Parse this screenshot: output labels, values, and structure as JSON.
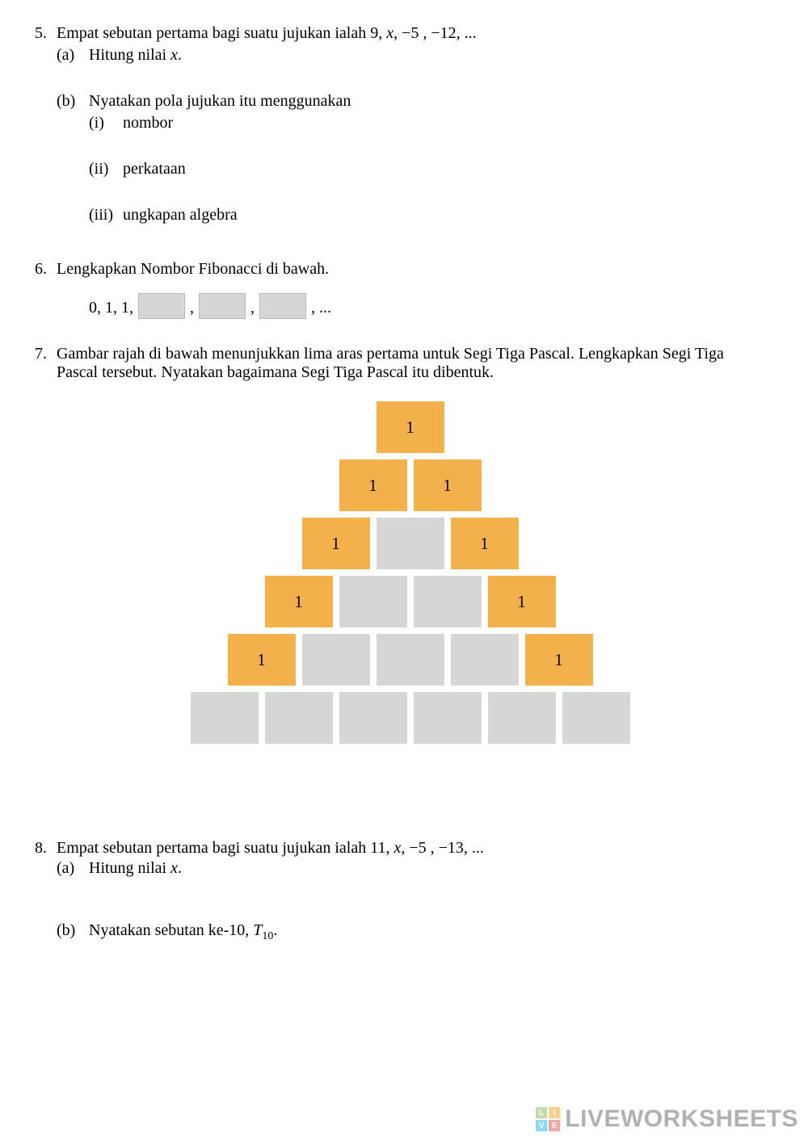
{
  "q5": {
    "num": "5.",
    "text_a": "Empat sebutan pertama bagi suatu jujukan ialah  9, ",
    "text_x": "x",
    "text_b": ", −5 , −12, ...",
    "a_lbl": "(a)",
    "a_txt": "Hitung nilai ",
    "a_x": "x",
    "a_dot": ".",
    "b_lbl": "(b)",
    "b_txt": "Nyatakan pola jujukan itu menggunakan",
    "i_lbl": "(i)",
    "i_txt": "nombor",
    "ii_lbl": "(ii)",
    "ii_txt": "perkataan",
    "iii_lbl": "(iii)",
    "iii_txt": "ungkapan algebra"
  },
  "q6": {
    "num": "6.",
    "text": "Lengkapkan Nombor Fibonacci di bawah.",
    "seq_prefix": "0, 1, 1,",
    "comma": ",",
    "suffix": ", ..."
  },
  "q7": {
    "num": "7.",
    "text": "Gambar rajah di bawah menunjukkan lima aras pertama untuk Segi Tiga Pascal. Lengkapkan Segi Tiga Pascal tersebut. Nyatakan bagaimana Segi Tiga Pascal itu dibentuk.",
    "pascal": {
      "filled_color": "#f3b14b",
      "blank_color": "#d6d6d6",
      "rows": [
        [
          {
            "v": "1",
            "t": "filled"
          }
        ],
        [
          {
            "v": "1",
            "t": "filled"
          },
          {
            "v": "1",
            "t": "filled"
          }
        ],
        [
          {
            "v": "1",
            "t": "filled"
          },
          {
            "v": "",
            "t": "blank"
          },
          {
            "v": "1",
            "t": "filled"
          }
        ],
        [
          {
            "v": "1",
            "t": "filled"
          },
          {
            "v": "",
            "t": "blank"
          },
          {
            "v": "",
            "t": "blank"
          },
          {
            "v": "1",
            "t": "filled"
          }
        ],
        [
          {
            "v": "1",
            "t": "filled"
          },
          {
            "v": "",
            "t": "blank"
          },
          {
            "v": "",
            "t": "blank"
          },
          {
            "v": "",
            "t": "blank"
          },
          {
            "v": "1",
            "t": "filled"
          }
        ],
        [
          {
            "v": "",
            "t": "blank"
          },
          {
            "v": "",
            "t": "blank"
          },
          {
            "v": "",
            "t": "blank"
          },
          {
            "v": "",
            "t": "blank"
          },
          {
            "v": "",
            "t": "blank"
          },
          {
            "v": "",
            "t": "blank"
          }
        ]
      ]
    }
  },
  "q8": {
    "num": "8.",
    "text_a": "Empat sebutan pertama bagi suatu jujukan ialah 11, ",
    "text_x": "x",
    "text_b": ", −5 , −13,  ...",
    "a_lbl": "(a)",
    "a_txt": "Hitung nilai ",
    "a_x": "x",
    "a_dot": ".",
    "b_lbl": "(b)",
    "b_txt_a": "Nyatakan sebutan ke-10, ",
    "b_T": "T",
    "b_sub": "10",
    "b_dot": "."
  },
  "watermark": {
    "logo_colors": [
      "#7cb342",
      "#ff9800",
      "#03a9f4",
      "#e53935"
    ],
    "logo_letters": [
      "L",
      "I",
      "V",
      "E"
    ],
    "text": "LIVEWORKSHEETS"
  }
}
